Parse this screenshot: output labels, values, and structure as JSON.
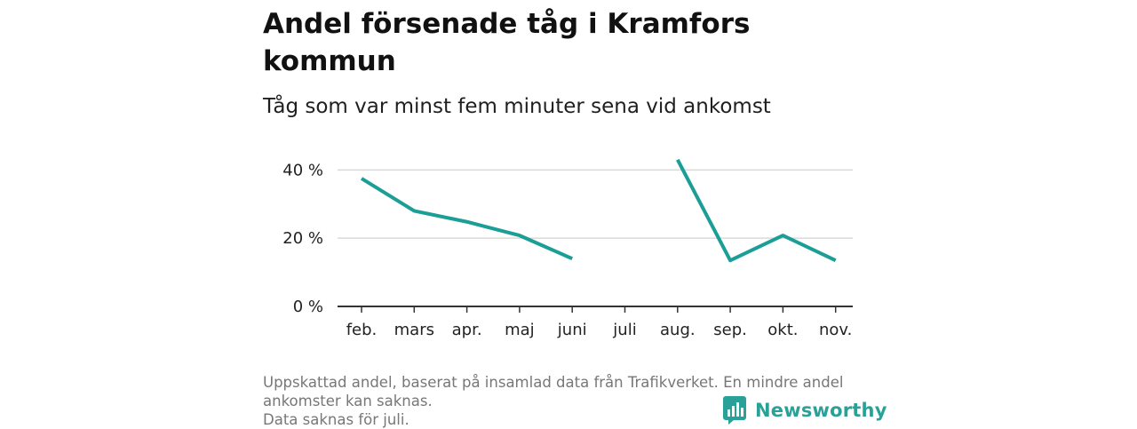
{
  "header": {
    "title": "Andel försenade tåg i Kramfors kommun",
    "subtitle": "Tåg som var minst fem minuter sena vid ankomst"
  },
  "footnote": {
    "line1": "Uppskattad andel, baserat på insamlad data från Trafikverket. En mindre andel",
    "line2": "ankomster kan saknas.",
    "line3": "Data saknas för juli."
  },
  "brand": {
    "name": "Newsworthy",
    "icon": "newsworthy-logo-icon",
    "color": "#2aa198"
  },
  "chart_data": {
    "type": "line",
    "title": "Andel försenade tåg i Kramfors kommun",
    "subtitle": "Tåg som var minst fem minuter sena vid ankomst",
    "categories": [
      "feb.",
      "mars",
      "apr.",
      "maj",
      "juni",
      "juli",
      "aug.",
      "sep.",
      "okt.",
      "nov."
    ],
    "series": [
      {
        "values": [
          37.5,
          28,
          24.8,
          20.8,
          14,
          null,
          43,
          13.5,
          20.8,
          13.5
        ]
      }
    ],
    "line_color": "#1a9e96",
    "y_ticks": [
      0,
      20,
      40
    ],
    "y_tick_labels": [
      "0 %",
      "20 %",
      "40 %"
    ],
    "ylim": [
      0,
      44
    ],
    "grid": true,
    "legend": "none"
  }
}
